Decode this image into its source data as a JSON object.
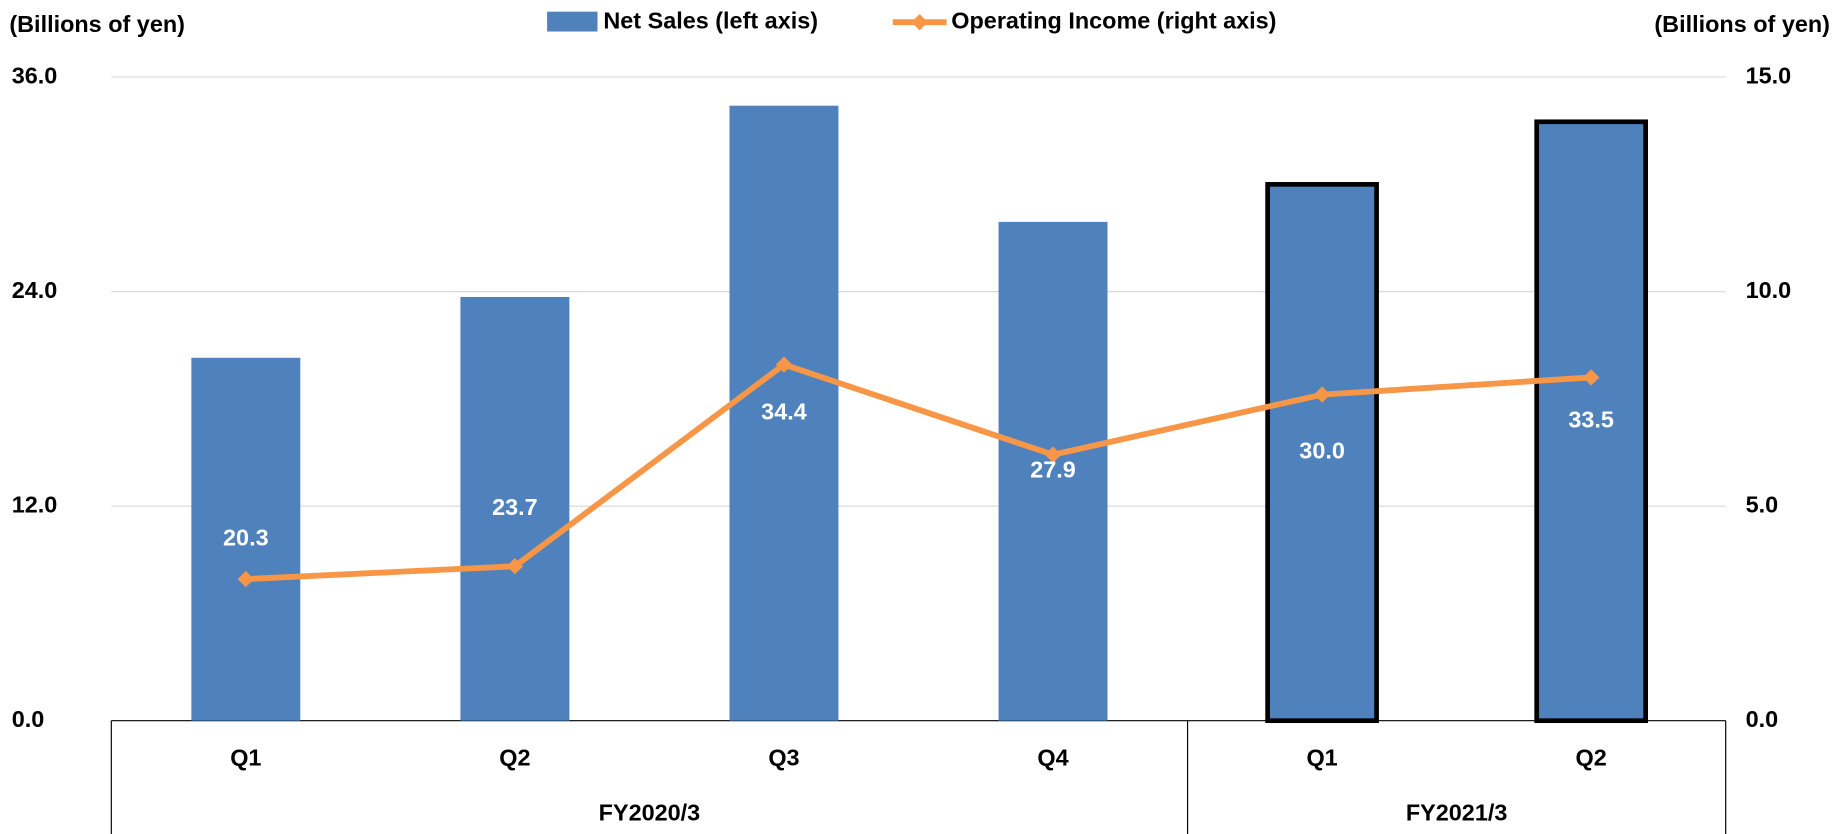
{
  "chart_data": {
    "type": "bar_line",
    "y_title": "(Billions of yen)",
    "y2_title": "(Billions of yen)",
    "groups": [
      {
        "name": "FY2020/3",
        "categories": [
          "Q1",
          "Q2",
          "Q3",
          "Q4"
        ]
      },
      {
        "name": "FY2021/3",
        "categories": [
          "Q1",
          "Q2"
        ]
      }
    ],
    "series": [
      {
        "name": "Net Sales (left axis)",
        "type": "bar",
        "color": "#4f81bd",
        "values": [
          20.3,
          23.7,
          34.4,
          27.9,
          30.0,
          33.5
        ],
        "value_labels": [
          "20.3",
          "23.7",
          "34.4",
          "27.9",
          "30.0",
          "33.5"
        ],
        "outline": [
          false,
          false,
          false,
          false,
          true,
          true
        ]
      },
      {
        "name": "Operating Income (right axis)",
        "type": "line",
        "axis": "y2",
        "color": "#f79646",
        "values": [
          3.3,
          3.6,
          8.3,
          6.2,
          7.6,
          8.0
        ]
      }
    ],
    "ylim": [
      0,
      36
    ],
    "yticks": [
      {
        "value": 0,
        "label": "0.0"
      },
      {
        "value": 12,
        "label": "12.0"
      },
      {
        "value": 24,
        "label": "24.0"
      },
      {
        "value": 36,
        "label": "36.0"
      }
    ],
    "y2lim": [
      0,
      15
    ],
    "y2ticks": [
      {
        "value": 0,
        "label": "0.0"
      },
      {
        "value": 5,
        "label": "5.0"
      },
      {
        "value": 10,
        "label": "10.0"
      },
      {
        "value": 15,
        "label": "15.0"
      }
    ],
    "grid": true,
    "legend": "top"
  }
}
